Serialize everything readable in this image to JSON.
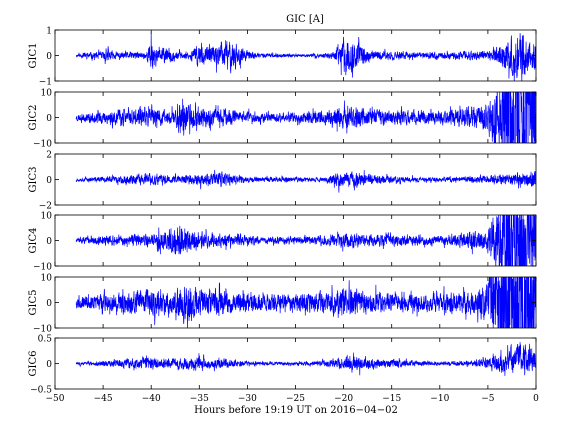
{
  "chart_data": {
    "type": "line",
    "title": "GIC [A]",
    "xlabel": "Hours before  19:19 UT on 2016−04−02",
    "xlim": [
      -50,
      0
    ],
    "xticks": [
      -50,
      -45,
      -40,
      -35,
      -30,
      -25,
      -20,
      -15,
      -10,
      -5,
      0
    ],
    "xtick_labels": [
      "−50",
      "−45",
      "−40",
      "−35",
      "−30",
      "−25",
      "−20",
      "−15",
      "−10",
      "−5",
      "0"
    ],
    "grid": false,
    "line_color": "#0000ff",
    "panels": [
      {
        "ylabel": "GIC1",
        "ylim": [
          -1,
          1
        ],
        "yticks": [
          -1,
          0,
          1
        ],
        "ytick_labels": [
          "−1",
          "0",
          "1"
        ],
        "amp": 0.045,
        "env": [
          [
            -47.5,
            0.1
          ],
          [
            -46,
            0.2
          ],
          [
            -45,
            0.2
          ],
          [
            -44.5,
            0.5
          ],
          [
            -44,
            0.2
          ],
          [
            -40.5,
            0.2
          ],
          [
            -40,
            0.9
          ],
          [
            -39.5,
            0.4
          ],
          [
            -38,
            0.4
          ],
          [
            -37.5,
            0.2
          ],
          [
            -36,
            0.2
          ],
          [
            -35,
            0.7
          ],
          [
            -34.5,
            0.5
          ],
          [
            -33,
            0.6
          ],
          [
            -32,
            1.0
          ],
          [
            -31,
            0.6
          ],
          [
            -30,
            0.3
          ],
          [
            -29,
            0.12
          ],
          [
            -24,
            0.08
          ],
          [
            -22,
            0.12
          ],
          [
            -21,
            0.25
          ],
          [
            -20,
            1.0
          ],
          [
            -19,
            0.8
          ],
          [
            -18,
            0.5
          ],
          [
            -17,
            0.2
          ],
          [
            -16,
            0.25
          ],
          [
            -14,
            0.2
          ],
          [
            -12,
            0.15
          ],
          [
            -9,
            0.2
          ],
          [
            -7,
            0.25
          ],
          [
            -5,
            0.25
          ],
          [
            -4,
            0.5
          ],
          [
            -3.5,
            0.8
          ],
          [
            -2.5,
            1.0
          ],
          [
            -1.5,
            1.4
          ],
          [
            -0.5,
            0.7
          ],
          [
            0,
            0.8
          ]
        ],
        "seed": 11
      },
      {
        "ylabel": "GIC2",
        "ylim": [
          -10,
          10
        ],
        "yticks": [
          -10,
          0,
          10
        ],
        "ytick_labels": [
          "−10",
          "0",
          "10"
        ],
        "amp": 0.55,
        "env": [
          [
            -47.5,
            0.2
          ],
          [
            -44.5,
            0.4
          ],
          [
            -40,
            0.5
          ],
          [
            -38,
            0.4
          ],
          [
            -37,
            1.0
          ],
          [
            -36,
            0.6
          ],
          [
            -33,
            0.5
          ],
          [
            -30,
            0.3
          ],
          [
            -26,
            0.25
          ],
          [
            -22,
            0.4
          ],
          [
            -20,
            0.6
          ],
          [
            -18,
            0.5
          ],
          [
            -15,
            0.4
          ],
          [
            -10,
            0.4
          ],
          [
            -6,
            0.6
          ],
          [
            -5,
            0.8
          ],
          [
            -4,
            2.0
          ],
          [
            -3,
            3.6
          ],
          [
            -2,
            4.0
          ],
          [
            -1,
            4.2
          ],
          [
            0,
            3.0
          ]
        ],
        "seed": 23
      },
      {
        "ylabel": "GIC3",
        "ylim": [
          -2,
          2
        ],
        "yticks": [
          -2,
          0,
          2
        ],
        "ytick_labels": [
          "−2",
          "0",
          "2"
        ],
        "amp": 0.08,
        "env": [
          [
            -47.5,
            0.1
          ],
          [
            -45,
            0.15
          ],
          [
            -40,
            0.35
          ],
          [
            -38,
            0.2
          ],
          [
            -36,
            0.25
          ],
          [
            -35,
            0.3
          ],
          [
            -33,
            0.4
          ],
          [
            -32,
            0.35
          ],
          [
            -30,
            0.15
          ],
          [
            -22,
            0.12
          ],
          [
            -20,
            0.5
          ],
          [
            -19,
            0.4
          ],
          [
            -18,
            0.4
          ],
          [
            -17,
            0.25
          ],
          [
            -15,
            0.2
          ],
          [
            -12,
            0.12
          ],
          [
            -8,
            0.15
          ],
          [
            -5,
            0.2
          ],
          [
            -4,
            0.3
          ],
          [
            -2,
            0.35
          ],
          [
            0,
            0.45
          ]
        ],
        "seed": 37
      },
      {
        "ylabel": "GIC4",
        "ylim": [
          -10,
          10
        ],
        "yticks": [
          -10,
          0,
          10
        ],
        "ytick_labels": [
          "−10",
          "0",
          "10"
        ],
        "amp": 0.5,
        "env": [
          [
            -47.5,
            0.15
          ],
          [
            -45,
            0.25
          ],
          [
            -40,
            0.35
          ],
          [
            -37,
            0.9
          ],
          [
            -35,
            0.5
          ],
          [
            -32,
            0.35
          ],
          [
            -28,
            0.2
          ],
          [
            -24,
            0.2
          ],
          [
            -20,
            0.4
          ],
          [
            -18,
            0.35
          ],
          [
            -15,
            0.3
          ],
          [
            -10,
            0.25
          ],
          [
            -6,
            0.5
          ],
          [
            -5,
            0.6
          ],
          [
            -4,
            1.8
          ],
          [
            -3.5,
            3.5
          ],
          [
            -2,
            3.0
          ],
          [
            -1,
            2.6
          ],
          [
            0,
            2.2
          ]
        ],
        "seed": 51
      },
      {
        "ylabel": "GIC5",
        "ylim": [
          -10,
          10
        ],
        "yticks": [
          -10,
          0,
          10
        ],
        "ytick_labels": [
          "−10",
          "0",
          "10"
        ],
        "amp": 0.5,
        "env": [
          [
            -47.5,
            0.3
          ],
          [
            -45,
            0.5
          ],
          [
            -40,
            0.7
          ],
          [
            -38,
            0.6
          ],
          [
            -36,
            1.0
          ],
          [
            -35,
            0.8
          ],
          [
            -33,
            0.7
          ],
          [
            -30,
            0.5
          ],
          [
            -26,
            0.45
          ],
          [
            -22,
            0.6
          ],
          [
            -20,
            0.8
          ],
          [
            -18,
            0.7
          ],
          [
            -15,
            0.5
          ],
          [
            -10,
            0.5
          ],
          [
            -6,
            0.7
          ],
          [
            -5,
            1.2
          ],
          [
            -4,
            3.5
          ],
          [
            -3,
            4.0
          ],
          [
            -2,
            4.4
          ],
          [
            -1,
            4.2
          ],
          [
            0,
            3.0
          ]
        ],
        "seed": 67
      },
      {
        "ylabel": "GIC6",
        "ylim": [
          -0.5,
          0.5
        ],
        "yticks": [
          -0.5,
          0,
          0.5
        ],
        "ytick_labels": [
          "−0.5",
          "0",
          "0.5"
        ],
        "amp": 0.022,
        "env": [
          [
            -47.5,
            0.08
          ],
          [
            -45,
            0.15
          ],
          [
            -40,
            0.35
          ],
          [
            -39,
            0.25
          ],
          [
            -37,
            0.3
          ],
          [
            -35,
            0.35
          ],
          [
            -34,
            0.25
          ],
          [
            -33,
            0.3
          ],
          [
            -30,
            0.12
          ],
          [
            -25,
            0.08
          ],
          [
            -22,
            0.15
          ],
          [
            -20,
            0.35
          ],
          [
            -19,
            0.45
          ],
          [
            -18,
            0.35
          ],
          [
            -16,
            0.2
          ],
          [
            -15,
            0.25
          ],
          [
            -12,
            0.12
          ],
          [
            -8,
            0.12
          ],
          [
            -6,
            0.2
          ],
          [
            -5,
            0.35
          ],
          [
            -4,
            0.45
          ],
          [
            -3,
            0.6
          ],
          [
            -2,
            0.85
          ],
          [
            -1,
            0.9
          ],
          [
            0,
            0.6
          ]
        ],
        "seed": 83,
        "drift": [
          [
            -4,
            0
          ],
          [
            -3,
            0.05
          ],
          [
            -2,
            0.1
          ],
          [
            -1,
            0.12
          ],
          [
            0,
            0.08
          ]
        ]
      }
    ]
  }
}
